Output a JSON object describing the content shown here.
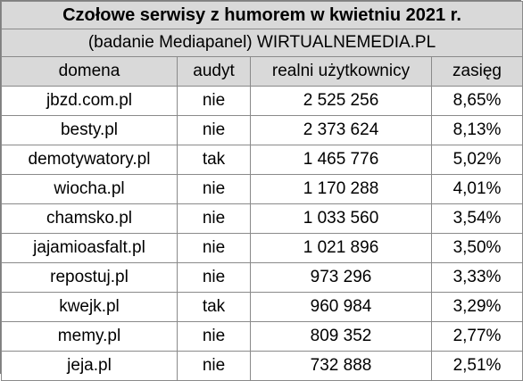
{
  "title": "Czołowe serwisy z humorem w kwietniu 2021 r.",
  "subtitle": "(badanie Mediapanel) WIRTUALNEMEDIA.PL",
  "headers": {
    "domain": "domena",
    "audit": "audyt",
    "users": "realni użytkownicy",
    "reach": "zasięg"
  },
  "rows": [
    {
      "domain": "jbzd.com.pl",
      "audit": "nie",
      "users": "2 525 256",
      "reach": "8,65%"
    },
    {
      "domain": "besty.pl",
      "audit": "nie",
      "users": "2 373 624",
      "reach": "8,13%"
    },
    {
      "domain": "demotywatory.pl",
      "audit": "tak",
      "users": "1 465 776",
      "reach": "5,02%"
    },
    {
      "domain": "wiocha.pl",
      "audit": "nie",
      "users": "1 170 288",
      "reach": "4,01%"
    },
    {
      "domain": "chamsko.pl",
      "audit": "nie",
      "users": "1 033 560",
      "reach": "3,54%"
    },
    {
      "domain": "jajamioasfalt.pl",
      "audit": "nie",
      "users": "1 021 896",
      "reach": "3,50%"
    },
    {
      "domain": "repostuj.pl",
      "audit": "nie",
      "users": "973 296",
      "reach": "3,33%"
    },
    {
      "domain": "kwejk.pl",
      "audit": "tak",
      "users": "960 984",
      "reach": "3,29%"
    },
    {
      "domain": "memy.pl",
      "audit": "nie",
      "users": "809 352",
      "reach": "2,77%"
    },
    {
      "domain": "jeja.pl",
      "audit": "nie",
      "users": "732 888",
      "reach": "2,51%"
    }
  ]
}
